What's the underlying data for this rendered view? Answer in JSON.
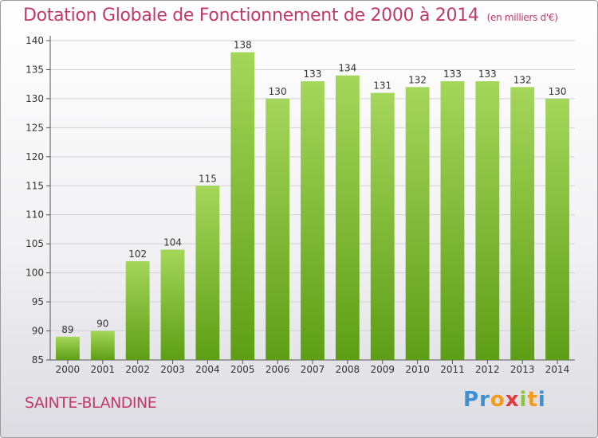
{
  "title": "Dotation Globale de Fonctionnement de 2000 à 2014",
  "unit_note": "(en milliers d'€)",
  "commune": "SAINTE-BLANDINE",
  "brand": {
    "letters": [
      "P",
      "r",
      "o",
      "x",
      "i",
      "t",
      "i"
    ],
    "colors": [
      "#3d8fd6",
      "#3d8fd6",
      "#f29b1d",
      "#e23b3b",
      "#8cc63f",
      "#f29b1d",
      "#3d8fd6"
    ]
  },
  "colors": {
    "bar_top": "#a4d65a",
    "bar_bottom": "#5e9e16",
    "title": "#c0396b"
  },
  "chart_data": {
    "type": "bar",
    "categories": [
      "2000",
      "2001",
      "2002",
      "2003",
      "2004",
      "2005",
      "2006",
      "2007",
      "2008",
      "2009",
      "2010",
      "2011",
      "2012",
      "2013",
      "2014"
    ],
    "values": [
      89,
      90,
      102,
      104,
      115,
      138,
      130,
      133,
      134,
      131,
      132,
      133,
      133,
      132,
      130
    ],
    "ylim": [
      85,
      140
    ],
    "yticks": [
      85,
      90,
      95,
      100,
      105,
      110,
      115,
      120,
      125,
      130,
      135,
      140
    ],
    "grid": true,
    "title": "Dotation Globale de Fonctionnement de 2000 à 2014",
    "xlabel": "",
    "ylabel": ""
  }
}
